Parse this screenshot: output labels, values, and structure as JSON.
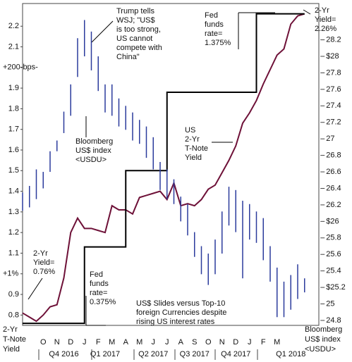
{
  "chart_data": {
    "type": "line",
    "categories": [
      null,
      null,
      null,
      "O",
      null,
      "N",
      null,
      "D",
      null,
      "J",
      null,
      "F",
      null,
      "M",
      null,
      "A",
      null,
      "M",
      null,
      "J",
      null,
      "J",
      null,
      "A",
      null,
      "S",
      null,
      "O",
      null,
      "N",
      null,
      "D",
      null,
      "J",
      null,
      "F",
      null,
      "M",
      null,
      null,
      null,
      null,
      null,
      null
    ],
    "quarters": [
      null,
      null,
      null,
      null,
      null,
      null,
      "Q4 2016",
      null,
      null,
      null,
      null,
      null,
      "Q1 2017",
      null,
      null,
      null,
      null,
      null,
      null,
      "Q2 2017",
      null,
      null,
      null,
      null,
      null,
      "Q3 2017",
      null,
      null,
      null,
      null,
      null,
      "Q4 2017",
      null,
      null,
      null,
      null,
      null,
      null,
      null,
      "Q1 2018",
      null,
      null,
      null,
      null
    ],
    "series": [
      {
        "type": "line",
        "color": "#6e1138",
        "values": [
          0.81,
          0.79,
          0.77,
          0.8,
          0.84,
          0.85,
          0.98,
          1.2,
          1.27,
          1.22,
          1.22,
          1.21,
          1.2,
          1.33,
          1.31,
          1.31,
          1.29,
          1.37,
          1.38,
          1.39,
          1.4,
          1.36,
          1.44,
          1.33,
          1.34,
          1.33,
          1.36,
          1.41,
          1.43,
          1.49,
          1.55,
          1.62,
          1.73,
          1.78,
          1.84,
          1.92,
          1.99,
          2.06,
          2.09,
          2.21,
          2.25,
          2.26,
          null,
          null
        ]
      },
      {
        "type": "step",
        "color": "#000000",
        "values": [
          0.76,
          0.76,
          0.76,
          0.76,
          0.76,
          0.76,
          0.76,
          0.76,
          0.76,
          1.13,
          1.13,
          1.13,
          1.13,
          1.13,
          1.13,
          1.5,
          1.5,
          1.5,
          1.5,
          1.5,
          1.5,
          1.88,
          1.88,
          1.88,
          1.88,
          1.88,
          1.88,
          1.88,
          1.88,
          1.88,
          1.88,
          1.88,
          1.88,
          1.88,
          2.26,
          2.26,
          2.26,
          2.26,
          2.26,
          2.26,
          2.26,
          2.26,
          null,
          null
        ]
      },
      {
        "type": "range",
        "color": "#2b3b9c",
        "axis": "y2",
        "high": [
          26.35,
          26.43,
          26.63,
          26.6,
          26.85,
          26.98,
          27.33,
          27.66,
          28.22,
          28.44,
          28.3,
          28.0,
          27.66,
          27.66,
          27.49,
          27.4,
          27.32,
          27.23,
          27.15,
          27.02,
          26.72,
          26.63,
          26.51,
          26.3,
          26.21,
          25.87,
          25.7,
          25.61,
          25.78,
          26.12,
          26.42,
          26.38,
          26.25,
          26.21,
          26.12,
          26.04,
          25.7,
          25.44,
          25.27,
          25.35,
          25.48,
          25.31,
          null,
          null
        ],
        "low": [
          26.13,
          26.17,
          26.27,
          26.4,
          26.6,
          26.85,
          27.07,
          27.28,
          27.75,
          28.0,
          27.83,
          27.58,
          27.32,
          27.28,
          27.15,
          27.11,
          26.98,
          26.94,
          26.77,
          26.63,
          26.38,
          26.27,
          26.21,
          26.0,
          25.83,
          25.57,
          25.36,
          25.23,
          25.36,
          25.61,
          25.95,
          25.87,
          25.31,
          25.78,
          25.74,
          25.53,
          25.27,
          24.84,
          24.84,
          24.93,
          25.06,
          25.14,
          null,
          null
        ]
      }
    ],
    "ylim": [
      0.75,
      2.31
    ],
    "yticks": [
      0.8,
      0.9,
      {
        "value": 1.0,
        "label": "+1%"
      },
      1.1,
      1.2,
      1.3,
      1.4,
      1.5,
      1.6,
      1.7,
      1.8,
      1.9,
      {
        "value": 2.0,
        "label": "+200-bps-"
      },
      2.1,
      2.2
    ],
    "y2lim": [
      24.74,
      28.64
    ],
    "y2ticks": [
      24.8,
      25,
      {
        "value": 25.2,
        "label": "$25.2"
      },
      25.4,
      25.6,
      25.8,
      {
        "value": 26,
        "label": "$26"
      },
      26.2,
      26.4,
      26.6,
      26.8,
      27,
      27.2,
      27.4,
      27.6,
      27.8,
      {
        "value": 28,
        "label": "$28"
      },
      28.2
    ],
    "ylabel": [
      "2-Yr",
      "T-Note",
      "Yield"
    ],
    "y2label": [
      "Bloomberg",
      "US$ index",
      "<USDU>"
    ],
    "annotations": [
      [
        "Trump tells",
        "WSJ; \"US$",
        "is too strong,",
        "US cannot",
        "compete with",
        "China\""
      ],
      [
        "Fed",
        "funds",
        "rate=",
        "1.375%"
      ],
      [
        "2-Yr",
        "Yield=",
        "2.26%"
      ],
      [
        "US",
        "2-Yr",
        "T-Note",
        "Yield"
      ],
      [
        "Bloomberg",
        "US$ index",
        "<USDU>"
      ],
      [
        "2-Yr",
        "Yield=",
        "0.76%"
      ],
      [
        "Fed",
        "funds",
        "rate=",
        "0.375%"
      ],
      [
        "US$ Slides versus Top-10",
        "foreign Currencies despite",
        "rising US interest rates"
      ]
    ]
  }
}
